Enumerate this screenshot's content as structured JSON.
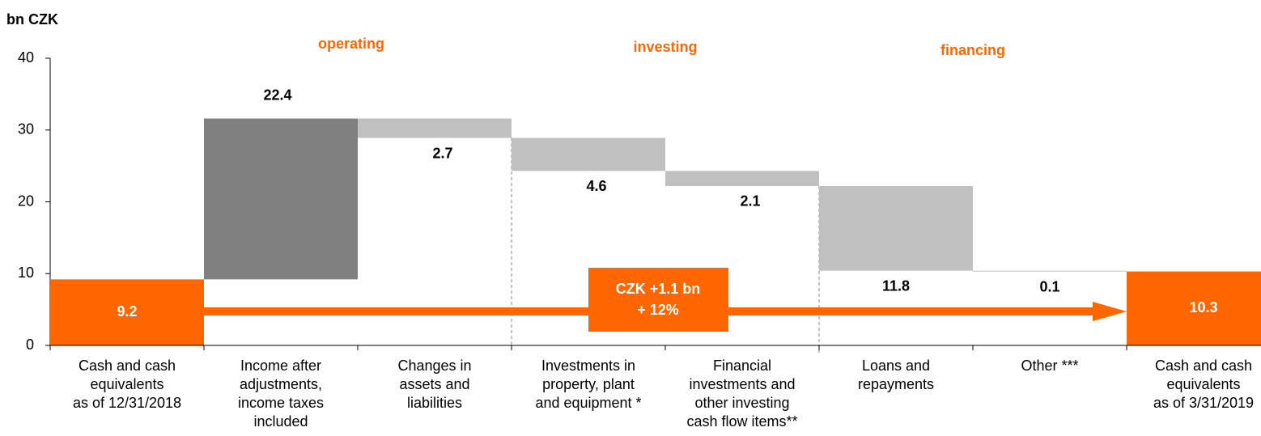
{
  "chart_data": {
    "type": "waterfall",
    "y_axis_label": "bn CZK",
    "groups": [
      "operating",
      "investing",
      "financing"
    ],
    "categories": [
      "Cash and cash\nequivalents\nas of 12/31/2018",
      "Income after\nadjustments,\nincome taxes\nincluded",
      "Changes in\nassets and\nliabilities",
      "Investments in\nproperty, plant\nand equipment *",
      "Financial\ninvestments and\nother investing\ncash flow items**",
      "Loans and\nrepayments",
      "Other ***",
      "Cash and cash\nequivalents\nas of 3/31/2019"
    ],
    "values": [
      9.2,
      22.4,
      -2.7,
      -4.6,
      -2.1,
      -11.8,
      -0.1,
      10.3
    ],
    "value_labels": [
      "9.2",
      "22.4",
      "2.7",
      "4.6",
      "2.1",
      "11.8",
      "0.1",
      "10.3"
    ],
    "colors": [
      "#ff6600",
      "#808080",
      "#c0c0c0",
      "#c0c0c0",
      "#c0c0c0",
      "#c0c0c0",
      "#c0c0c0",
      "#ff6600"
    ],
    "annotation": [
      "CZK +1.1 bn",
      "+ 12%"
    ],
    "ylim": [
      0,
      40
    ],
    "yticks": [
      0,
      10,
      20,
      30,
      40
    ]
  }
}
